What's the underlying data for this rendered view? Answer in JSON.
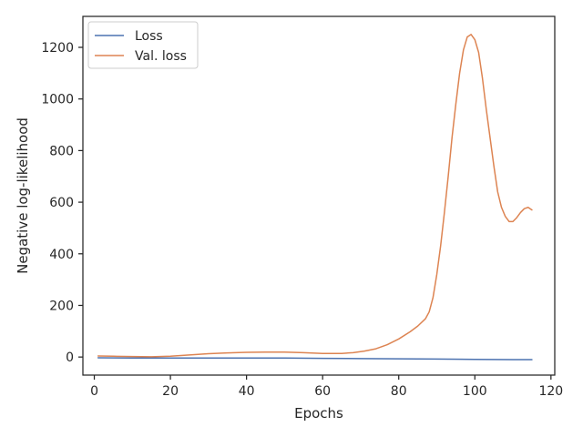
{
  "chart_data": {
    "type": "line",
    "xlabel": "Epochs",
    "ylabel": "Negative log-likelihood",
    "xlim": [
      -3,
      121
    ],
    "ylim": [
      -70,
      1320
    ],
    "xticks": [
      0,
      20,
      40,
      60,
      80,
      100,
      120
    ],
    "yticks": [
      0,
      200,
      400,
      600,
      800,
      1000,
      1200
    ],
    "grid": false,
    "legend_position": "top-left",
    "series": [
      {
        "name": "Loss",
        "color": "#4c72b0",
        "x": [
          1,
          10,
          20,
          30,
          40,
          50,
          60,
          70,
          80,
          90,
          100,
          110,
          115
        ],
        "y": [
          -3,
          -4,
          -4,
          -4,
          -4,
          -4,
          -5,
          -6,
          -7,
          -8,
          -9,
          -10,
          -10
        ]
      },
      {
        "name": "Val. loss",
        "color": "#dd8452",
        "x": [
          1,
          5,
          10,
          15,
          20,
          25,
          30,
          35,
          40,
          45,
          50,
          55,
          60,
          65,
          68,
          71,
          74,
          77,
          80,
          83,
          85,
          87,
          88,
          89,
          90,
          91,
          92,
          93,
          94,
          95,
          96,
          97,
          98,
          99,
          100,
          101,
          102,
          103,
          104,
          105,
          106,
          107,
          108,
          109,
          110,
          111,
          112,
          113,
          114,
          115
        ],
        "y": [
          4,
          3,
          2,
          1,
          3,
          8,
          13,
          16,
          18,
          19,
          19,
          17,
          14,
          14,
          17,
          23,
          32,
          48,
          70,
          98,
          120,
          148,
          175,
          230,
          320,
          430,
          560,
          700,
          850,
          980,
          1100,
          1190,
          1240,
          1250,
          1230,
          1180,
          1080,
          960,
          850,
          740,
          640,
          580,
          545,
          525,
          525,
          540,
          560,
          575,
          580,
          570
        ]
      }
    ]
  }
}
